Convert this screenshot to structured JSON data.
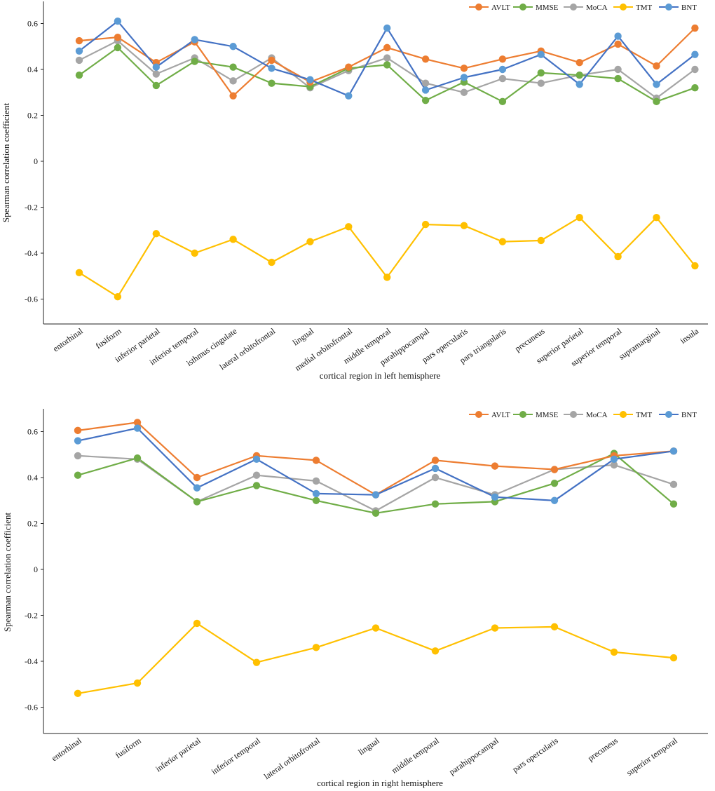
{
  "figure": {
    "series_colors": {
      "AVLT": "#ED7D31",
      "MMSE": "#70AD47",
      "MoCA": "#A5A5A5",
      "TMT": "#FFC000",
      "BNT": "#5B9BD5"
    },
    "bnt_line_color": "#4472C4"
  },
  "chart_data": [
    {
      "type": "line",
      "title": "",
      "xlabel": "cortical region in left hemisphere",
      "ylabel": "Spearman  correlation coefficient",
      "ylim": [
        -0.7,
        0.7
      ],
      "yticks": [
        0.6,
        0.4,
        0.2,
        0,
        -0.2,
        -0.4,
        -0.6
      ],
      "ytick_labels": [
        "0.6",
        "0.4",
        "0.2",
        "0",
        "-0.2",
        "-0.4",
        "-0.6"
      ],
      "legend": "top-right",
      "grid": false,
      "categories": [
        "entorhinal",
        "fusiform",
        "inferior parietal",
        "inferior temporal",
        "isthmus cingulate",
        "lateral orbitofrontal",
        "lingual",
        "medial orbitofrontal",
        "middle temporal",
        "parahippocampal",
        "pars opercularis",
        "pars triangularis",
        "precuneus",
        "superior parietal",
        "superior temporal",
        "supramarginal",
        "insula"
      ],
      "series": [
        {
          "name": "AVLT",
          "values": [
            0.525,
            0.54,
            0.43,
            0.52,
            0.285,
            0.44,
            0.345,
            0.41,
            0.495,
            0.445,
            0.405,
            0.445,
            0.48,
            0.43,
            0.51,
            0.415,
            0.58
          ]
        },
        {
          "name": "MMSE",
          "values": [
            0.375,
            0.495,
            0.33,
            0.435,
            0.41,
            0.34,
            0.325,
            0.405,
            0.42,
            0.265,
            0.345,
            0.26,
            0.385,
            0.375,
            0.36,
            0.26,
            0.32
          ]
        },
        {
          "name": "MoCA",
          "values": [
            0.44,
            0.525,
            0.38,
            0.45,
            0.35,
            0.45,
            0.32,
            0.395,
            0.45,
            0.34,
            0.3,
            0.36,
            0.34,
            0.375,
            0.4,
            0.275,
            0.4
          ]
        },
        {
          "name": "TMT",
          "values": [
            -0.485,
            -0.59,
            -0.315,
            -0.4,
            -0.34,
            -0.44,
            -0.35,
            -0.285,
            -0.505,
            -0.275,
            -0.28,
            -0.35,
            -0.345,
            -0.245,
            -0.415,
            -0.245,
            -0.455
          ]
        },
        {
          "name": "BNT",
          "values": [
            0.48,
            0.61,
            0.41,
            0.53,
            0.5,
            0.405,
            0.355,
            0.285,
            0.58,
            0.31,
            0.365,
            0.4,
            0.465,
            0.335,
            0.545,
            0.335,
            0.465
          ]
        }
      ]
    },
    {
      "type": "line",
      "title": "",
      "xlabel": "cortical region in right hemisphere",
      "ylabel": "Spearman  correlation coefficient",
      "ylim": [
        -0.7,
        0.7
      ],
      "yticks": [
        0.6,
        0.4,
        0.2,
        0,
        -0.2,
        -0.4,
        -0.6
      ],
      "ytick_labels": [
        "0.6",
        "0.4",
        "0.2",
        "0",
        "-0.2",
        "-0.4",
        "-0.6"
      ],
      "legend": "top-right",
      "grid": false,
      "categories": [
        "entorhinal",
        "fusiform",
        "inferior parietal",
        "inferior temporal",
        "lateral orbitofrontal",
        "lingual",
        "middle temporal",
        "parahippocampal",
        "pars opercularis",
        "precuneus",
        "superior temporal"
      ],
      "series": [
        {
          "name": "AVLT",
          "values": [
            0.605,
            0.64,
            0.4,
            0.495,
            0.475,
            0.325,
            0.475,
            0.45,
            0.435,
            0.495,
            0.515
          ]
        },
        {
          "name": "MMSE",
          "values": [
            0.41,
            0.485,
            0.295,
            0.365,
            0.3,
            0.245,
            0.285,
            0.295,
            0.375,
            0.505,
            0.285
          ]
        },
        {
          "name": "MoCA",
          "values": [
            0.495,
            0.48,
            0.295,
            0.41,
            0.385,
            0.255,
            0.4,
            0.325,
            0.435,
            0.455,
            0.37
          ]
        },
        {
          "name": "TMT",
          "values": [
            -0.54,
            -0.495,
            -0.235,
            -0.405,
            -0.34,
            -0.255,
            -0.355,
            -0.255,
            -0.25,
            -0.36,
            -0.385
          ]
        },
        {
          "name": "BNT",
          "values": [
            0.56,
            0.615,
            0.355,
            0.48,
            0.33,
            0.325,
            0.44,
            0.315,
            0.3,
            0.48,
            0.515
          ]
        }
      ]
    }
  ]
}
